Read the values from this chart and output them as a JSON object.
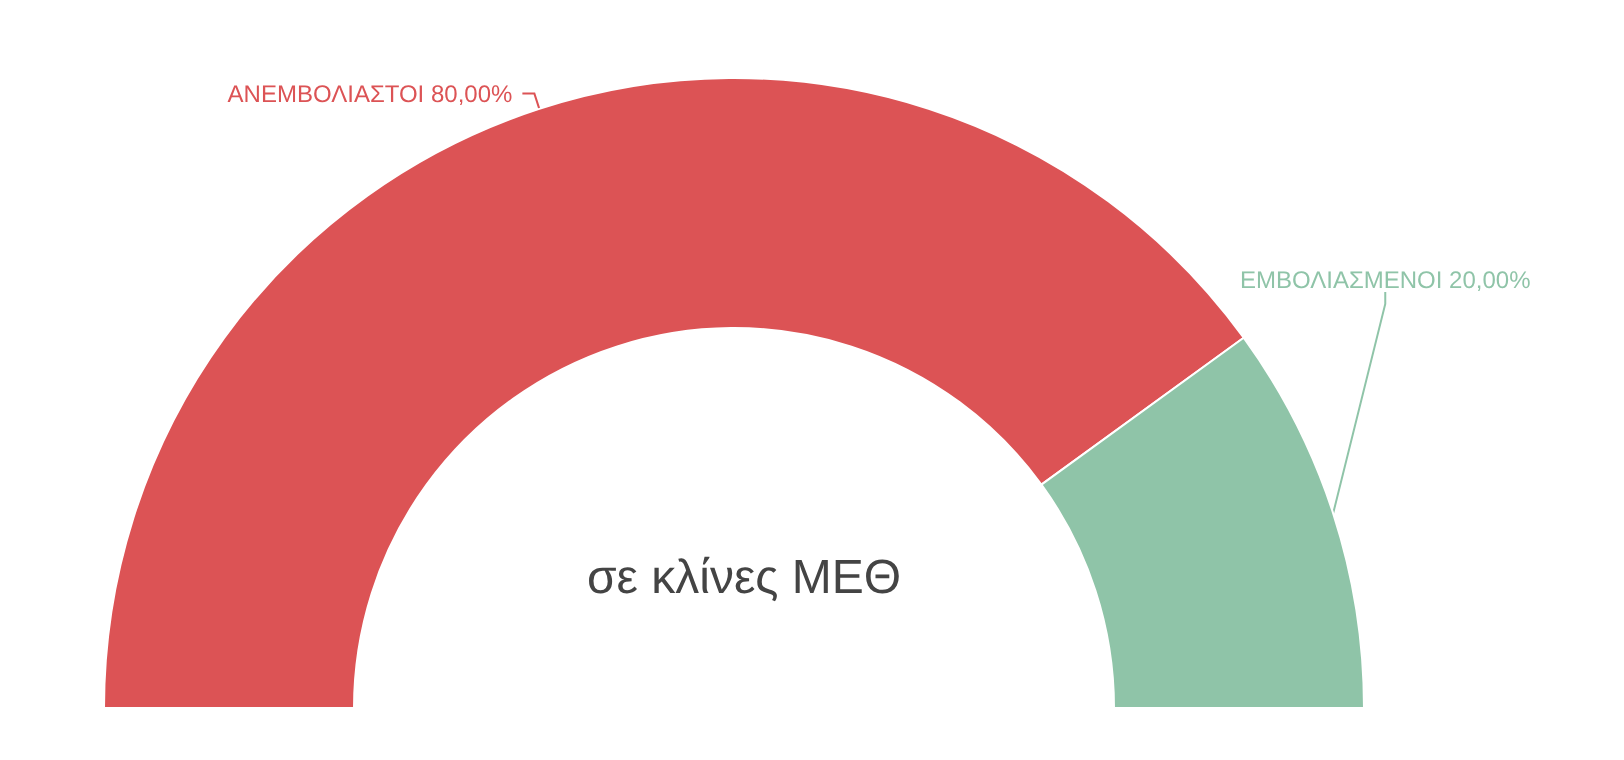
{
  "chart_data": {
    "type": "donut",
    "title": "σε κλίνες ΜΕΘ",
    "categories": [
      "ΑΝΕΜΒΟΛΙΑΣΤΟΙ",
      "ΕΜΒΟΛΙΑΣΜΕΝΟΙ"
    ],
    "values": [
      80,
      20
    ],
    "colors": [
      "#dc5355",
      "#8fc4a8"
    ],
    "value_labels": [
      "80,00%",
      "20,00%"
    ],
    "legend": false
  }
}
